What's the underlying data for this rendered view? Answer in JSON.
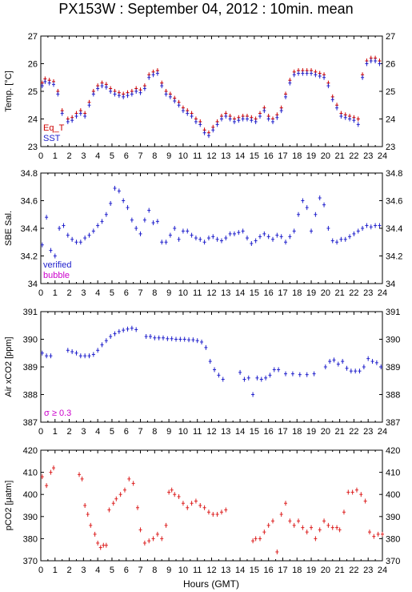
{
  "title": "PX153W : September 04, 2012 : 10min. mean",
  "xlabel": "Hours (GMT)",
  "colors": {
    "eq_t": "#cc0000",
    "sst": "#2020cc",
    "verified": "#2020cc",
    "bubble": "#cc00cc",
    "air": "#2020cc",
    "pco2": "#dd2020",
    "sigma": "#cc00cc"
  },
  "chart_data": [
    {
      "type": "scatter",
      "ylabel": "Temp. [°C]",
      "ylim": [
        23,
        27
      ],
      "yticks": [
        23,
        24,
        25,
        26,
        27
      ],
      "xlim": [
        0,
        24
      ],
      "xticks": [
        0,
        1,
        2,
        3,
        4,
        5,
        6,
        7,
        8,
        9,
        10,
        11,
        12,
        13,
        14,
        15,
        16,
        17,
        18,
        19,
        20,
        21,
        22,
        23,
        24
      ],
      "legend": [
        "Eq_T",
        "SST"
      ],
      "series": [
        {
          "name": "Eq_T",
          "color": "#cc0000",
          "x": [
            0.1,
            0.3,
            0.6,
            0.9,
            1.2,
            1.5,
            1.9,
            2.2,
            2.5,
            2.8,
            3.1,
            3.4,
            3.7,
            4.0,
            4.3,
            4.6,
            4.9,
            5.2,
            5.5,
            5.8,
            6.1,
            6.4,
            6.7,
            7.0,
            7.3,
            7.6,
            7.9,
            8.2,
            8.5,
            8.8,
            9.1,
            9.4,
            9.7,
            10.0,
            10.3,
            10.6,
            10.9,
            11.2,
            11.5,
            11.8,
            12.1,
            12.4,
            12.7,
            13.0,
            13.3,
            13.6,
            13.9,
            14.2,
            14.5,
            14.8,
            15.1,
            15.4,
            15.7,
            16.0,
            16.3,
            16.6,
            16.9,
            17.2,
            17.5,
            17.8,
            18.1,
            18.4,
            18.7,
            19.0,
            19.3,
            19.6,
            19.9,
            20.2,
            20.5,
            20.8,
            21.1,
            21.4,
            21.7,
            22.0,
            22.3,
            22.6,
            22.9,
            23.2,
            23.5,
            23.8
          ],
          "y": [
            25.3,
            25.45,
            25.4,
            25.35,
            25.0,
            24.3,
            24.0,
            24.05,
            24.2,
            24.3,
            24.2,
            24.6,
            25.0,
            25.2,
            25.3,
            25.25,
            25.1,
            25.0,
            24.95,
            24.9,
            24.95,
            25.0,
            25.1,
            25.05,
            25.2,
            25.6,
            25.7,
            25.75,
            25.3,
            25.0,
            24.9,
            24.75,
            24.6,
            24.4,
            24.3,
            24.2,
            24.0,
            23.9,
            23.6,
            23.5,
            23.7,
            23.9,
            24.1,
            24.2,
            24.1,
            24.0,
            24.05,
            24.1,
            24.1,
            24.05,
            24.0,
            24.2,
            24.4,
            24.1,
            24.0,
            24.15,
            24.4,
            24.9,
            25.4,
            25.7,
            25.75,
            25.75,
            25.75,
            25.75,
            25.7,
            25.65,
            25.6,
            25.3,
            24.8,
            24.5,
            24.2,
            24.15,
            24.1,
            24.05,
            24.0,
            25.6,
            26.1,
            26.2,
            26.2,
            26.1
          ]
        },
        {
          "name": "SST",
          "color": "#2020cc",
          "x": [
            0.1,
            0.3,
            0.6,
            0.9,
            1.2,
            1.5,
            1.9,
            2.2,
            2.5,
            2.8,
            3.1,
            3.4,
            3.7,
            4.0,
            4.3,
            4.6,
            4.9,
            5.2,
            5.5,
            5.8,
            6.1,
            6.4,
            6.7,
            7.0,
            7.3,
            7.6,
            7.9,
            8.2,
            8.5,
            8.8,
            9.1,
            9.4,
            9.7,
            10.0,
            10.3,
            10.6,
            10.9,
            11.2,
            11.5,
            11.8,
            12.1,
            12.4,
            12.7,
            13.0,
            13.3,
            13.6,
            13.9,
            14.2,
            14.5,
            14.8,
            15.1,
            15.4,
            15.7,
            16.0,
            16.3,
            16.6,
            16.9,
            17.2,
            17.5,
            17.8,
            18.1,
            18.4,
            18.7,
            19.0,
            19.3,
            19.6,
            19.9,
            20.2,
            20.5,
            20.8,
            21.1,
            21.4,
            21.7,
            22.0,
            22.3,
            22.6,
            22.9,
            23.2,
            23.5,
            23.8
          ],
          "y": [
            25.2,
            25.35,
            25.3,
            25.25,
            24.9,
            24.2,
            23.9,
            23.95,
            24.1,
            24.2,
            24.1,
            24.5,
            24.9,
            25.1,
            25.2,
            25.15,
            25.0,
            24.9,
            24.85,
            24.8,
            24.85,
            24.9,
            25.0,
            24.95,
            25.1,
            25.5,
            25.6,
            25.65,
            25.2,
            24.9,
            24.8,
            24.65,
            24.5,
            24.3,
            24.2,
            24.1,
            23.9,
            23.8,
            23.5,
            23.4,
            23.6,
            23.8,
            24.0,
            24.1,
            24.0,
            23.9,
            23.95,
            24.0,
            24.0,
            23.95,
            23.9,
            24.1,
            24.3,
            24.0,
            23.9,
            24.05,
            24.3,
            24.8,
            25.3,
            25.6,
            25.65,
            25.65,
            25.65,
            25.65,
            25.6,
            25.55,
            25.5,
            25.2,
            24.7,
            24.4,
            24.1,
            24.05,
            24.0,
            23.95,
            23.8,
            25.5,
            26.0,
            26.1,
            26.1,
            26.0
          ]
        }
      ]
    },
    {
      "type": "scatter",
      "ylabel": "SBE Sal.",
      "ylim": [
        34,
        34.8
      ],
      "yticks": [
        34,
        34.2,
        34.4,
        34.6,
        34.8
      ],
      "xlim": [
        0,
        24
      ],
      "xticks": [
        0,
        1,
        2,
        3,
        4,
        5,
        6,
        7,
        8,
        9,
        10,
        11,
        12,
        13,
        14,
        15,
        16,
        17,
        18,
        19,
        20,
        21,
        22,
        23,
        24
      ],
      "legend": [
        "verified",
        "bubble"
      ],
      "series": [
        {
          "name": "verified",
          "color": "#2020cc",
          "x": [
            0.1,
            0.4,
            0.7,
            1.0,
            1.3,
            1.6,
            1.9,
            2.2,
            2.5,
            2.8,
            3.1,
            3.4,
            3.7,
            4.0,
            4.3,
            4.6,
            4.9,
            5.2,
            5.5,
            5.8,
            6.1,
            6.4,
            6.7,
            7.0,
            7.3,
            7.6,
            7.9,
            8.2,
            8.5,
            8.8,
            9.1,
            9.4,
            9.7,
            10.0,
            10.3,
            10.6,
            10.9,
            11.2,
            11.5,
            11.8,
            12.1,
            12.4,
            12.7,
            13.0,
            13.3,
            13.6,
            13.9,
            14.2,
            14.5,
            14.8,
            15.1,
            15.4,
            15.7,
            16.0,
            16.3,
            16.6,
            16.9,
            17.2,
            17.5,
            17.8,
            18.1,
            18.4,
            18.7,
            19.0,
            19.3,
            19.6,
            19.9,
            20.2,
            20.5,
            20.8,
            21.1,
            21.4,
            21.7,
            22.0,
            22.3,
            22.6,
            22.9,
            23.2,
            23.5,
            23.8
          ],
          "y": [
            34.28,
            34.48,
            34.24,
            34.2,
            34.4,
            34.42,
            34.35,
            34.32,
            34.3,
            34.3,
            34.33,
            34.35,
            34.38,
            34.42,
            34.45,
            34.5,
            34.58,
            34.69,
            34.67,
            34.6,
            34.55,
            34.46,
            34.4,
            34.36,
            34.46,
            34.53,
            34.44,
            34.45,
            34.3,
            34.3,
            34.35,
            34.4,
            34.32,
            34.38,
            34.38,
            34.35,
            34.33,
            34.32,
            34.3,
            34.33,
            34.34,
            34.32,
            34.31,
            34.33,
            34.36,
            34.36,
            34.37,
            34.38,
            34.33,
            34.29,
            34.31,
            34.34,
            34.36,
            34.34,
            34.32,
            34.35,
            34.34,
            34.3,
            34.34,
            34.38,
            34.5,
            34.6,
            34.55,
            34.38,
            34.5,
            34.62,
            34.57,
            34.4,
            34.31,
            34.3,
            34.32,
            34.32,
            34.34,
            34.36,
            34.38,
            34.4,
            34.42,
            34.41,
            34.42,
            34.42
          ]
        }
      ]
    },
    {
      "type": "scatter",
      "ylabel": "Air xCO2 [ppm]",
      "ylim": [
        387,
        391
      ],
      "yticks": [
        387,
        388,
        389,
        390,
        391
      ],
      "xlim": [
        0,
        24
      ],
      "xticks": [
        0,
        1,
        2,
        3,
        4,
        5,
        6,
        7,
        8,
        9,
        10,
        11,
        12,
        13,
        14,
        15,
        16,
        17,
        18,
        19,
        20,
        21,
        22,
        23,
        24
      ],
      "annotation": "σ ≥ 0.3",
      "series": [
        {
          "name": "",
          "color": "#2020cc",
          "x": [
            0.1,
            0.4,
            0.7,
            1.9,
            2.2,
            2.5,
            2.8,
            3.1,
            3.4,
            3.7,
            4.0,
            4.3,
            4.6,
            4.9,
            5.2,
            5.5,
            5.8,
            6.1,
            6.4,
            6.7,
            7.4,
            7.7,
            8.0,
            8.3,
            8.6,
            8.9,
            9.2,
            9.5,
            9.8,
            10.1,
            10.4,
            10.7,
            11.0,
            11.3,
            11.6,
            11.9,
            12.2,
            12.5,
            12.8,
            14.0,
            14.3,
            14.6,
            14.9,
            15.2,
            15.5,
            15.8,
            16.1,
            16.4,
            16.7,
            17.2,
            17.7,
            18.2,
            18.7,
            19.2,
            20.0,
            20.3,
            20.6,
            20.9,
            21.2,
            21.5,
            21.8,
            22.1,
            22.4,
            22.7,
            23.0,
            23.3,
            23.6,
            23.9
          ],
          "y": [
            389.5,
            389.4,
            389.4,
            389.6,
            389.55,
            389.5,
            389.4,
            389.4,
            389.4,
            389.45,
            389.6,
            389.8,
            389.95,
            390.1,
            390.2,
            390.28,
            390.33,
            390.37,
            390.4,
            390.35,
            390.1,
            390.1,
            390.05,
            390.05,
            390.05,
            390.02,
            390.02,
            390.0,
            390.0,
            390.0,
            389.98,
            389.98,
            389.95,
            389.9,
            389.7,
            389.2,
            388.9,
            388.7,
            388.55,
            388.8,
            388.55,
            388.6,
            388.0,
            388.6,
            388.55,
            388.6,
            388.7,
            388.9,
            388.9,
            388.75,
            388.75,
            388.72,
            388.72,
            388.75,
            389.0,
            389.2,
            389.25,
            389.1,
            389.2,
            388.95,
            388.85,
            388.85,
            388.85,
            389.0,
            389.3,
            389.2,
            389.15,
            389.0
          ]
        }
      ]
    },
    {
      "type": "scatter",
      "ylabel": "pCO2 [μatm]",
      "ylim": [
        370,
        420
      ],
      "yticks": [
        370,
        380,
        390,
        400,
        410,
        420
      ],
      "xlim": [
        0,
        24
      ],
      "xticks": [
        0,
        1,
        2,
        3,
        4,
        5,
        6,
        7,
        8,
        9,
        10,
        11,
        12,
        13,
        14,
        15,
        16,
        17,
        18,
        19,
        20,
        21,
        22,
        23,
        24
      ],
      "series": [
        {
          "name": "",
          "color": "#dd2020",
          "x": [
            0.1,
            0.4,
            0.7,
            0.9,
            2.7,
            2.9,
            3.1,
            3.3,
            3.5,
            3.8,
            4.0,
            4.2,
            4.4,
            4.6,
            4.8,
            5.1,
            5.3,
            5.6,
            5.9,
            6.2,
            6.5,
            6.8,
            7.0,
            7.3,
            7.6,
            7.9,
            8.2,
            8.5,
            8.8,
            9.0,
            9.2,
            9.4,
            9.7,
            10.0,
            10.3,
            10.6,
            10.9,
            11.2,
            11.5,
            11.8,
            12.1,
            12.4,
            12.7,
            13.0,
            14.9,
            15.1,
            15.4,
            15.7,
            16.0,
            16.3,
            16.6,
            16.9,
            17.2,
            17.5,
            17.8,
            18.1,
            18.4,
            18.7,
            19.0,
            19.3,
            19.6,
            19.9,
            20.2,
            20.5,
            20.8,
            21.0,
            21.3,
            21.6,
            21.9,
            22.2,
            22.5,
            22.8,
            23.1,
            23.4,
            23.7,
            24.0
          ],
          "y": [
            408,
            404,
            410,
            412,
            409,
            407,
            395,
            391,
            386,
            382,
            378,
            376,
            377,
            377,
            393,
            396,
            398,
            400,
            402,
            407,
            405,
            394,
            384,
            378,
            379,
            380,
            382,
            380,
            386,
            401,
            402,
            400,
            399,
            396,
            394,
            396,
            397,
            395,
            394,
            392,
            391,
            391,
            392,
            393,
            379,
            380,
            380,
            383,
            386,
            388,
            374,
            391,
            396,
            388,
            386,
            388,
            385,
            383,
            385,
            380,
            384,
            388,
            386,
            385,
            385,
            384,
            392,
            401,
            401,
            402,
            400,
            397,
            383,
            381,
            382,
            382
          ]
        }
      ]
    }
  ]
}
